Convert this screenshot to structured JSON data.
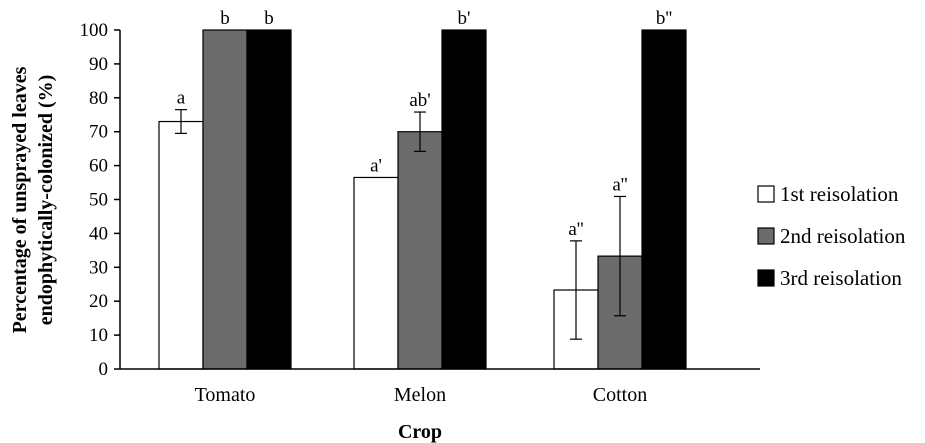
{
  "chart_data": {
    "type": "bar",
    "title": "",
    "xlabel": "Crop",
    "ylabel_lines": [
      "Percentage of unsprayed leaves",
      "endophytically-colonized (%)"
    ],
    "ylim": [
      0,
      100
    ],
    "yticks": [
      0,
      10,
      20,
      30,
      40,
      50,
      60,
      70,
      80,
      90,
      100
    ],
    "grid": false,
    "legend_position": "right",
    "categories": [
      "Tomato",
      "Melon",
      "Cotton"
    ],
    "series": [
      {
        "name": "1st reisolation",
        "color": "#ffffff",
        "values": [
          73,
          56.5,
          23.3
        ],
        "errors": [
          3.5,
          0,
          14.5
        ],
        "labels": [
          "a",
          "a'",
          "a''"
        ]
      },
      {
        "name": "2nd reisolation",
        "color": "#6b6b6b",
        "values": [
          100,
          70,
          33.3
        ],
        "errors": [
          0,
          5.8,
          17.6
        ],
        "labels": [
          "b",
          "ab'",
          "a''"
        ]
      },
      {
        "name": "3rd reisolation",
        "color": "#000000",
        "values": [
          100,
          100,
          100
        ],
        "errors": [
          0,
          0,
          0
        ],
        "labels": [
          "b",
          "b'",
          "b''"
        ]
      }
    ]
  }
}
